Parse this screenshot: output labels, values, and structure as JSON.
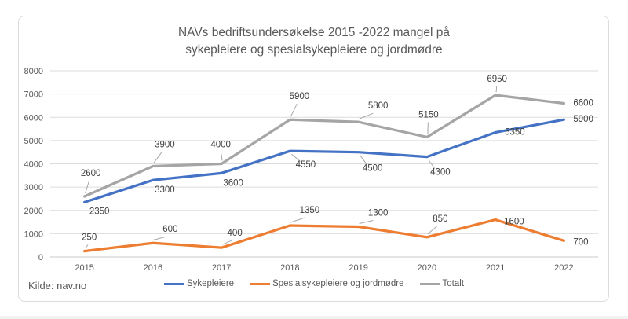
{
  "title": {
    "line1": "NAVs bedriftsundersøkelse 2015 -2022 mangel på",
    "line2": "sykepleiere og spesialsykepleiere og jordmødre"
  },
  "source": "Kilde: nav.no",
  "chart_data": {
    "type": "line",
    "title": "NAVs bedriftsundersøkelse 2015 -2022 mangel på sykepleiere og spesialsykepleiere og jordmødre",
    "categories": [
      "2015",
      "2016",
      "2017",
      "2018",
      "2019",
      "2020",
      "2021",
      "2022"
    ],
    "series": [
      {
        "name": "Sykepleiere",
        "color": "#4472C4",
        "values": [
          2350,
          3300,
          3600,
          4550,
          4500,
          4300,
          5350,
          5900
        ]
      },
      {
        "name": "Spesialsykepleiere og jordmødre",
        "color": "#ED7D31",
        "values": [
          250,
          600,
          400,
          1350,
          1300,
          850,
          1600,
          700
        ]
      },
      {
        "name": "Totalt",
        "color": "#A5A5A5",
        "values": [
          2600,
          3900,
          4000,
          5900,
          5800,
          5150,
          6950,
          6600
        ]
      }
    ],
    "ylim": [
      0,
      8000
    ],
    "ytick_step": 1000,
    "grid": true,
    "data_labels": true,
    "legend_position": "bottom",
    "colors": {
      "gridline": "#DCDCDC",
      "axis_line": "#C9C9C9",
      "axis_text": "#595959",
      "label_text": "#404040",
      "leader_line": "#A6A6A6"
    }
  }
}
